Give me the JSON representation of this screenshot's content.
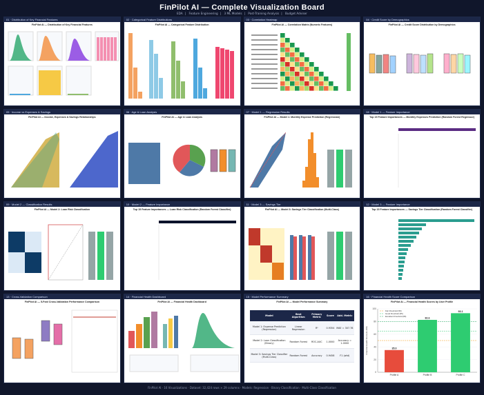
{
  "app": {
    "title": "FinPilot AI  —  Complete Visualization Board",
    "nav": [
      "EDA",
      "Feature Engineering",
      "3 ML Models",
      "Post-Training Analysis",
      "Budget Adviser"
    ],
    "footer": "FinPilot AI · 16 Visualizations · Dataset: 32,424 rows × 29 columns · Models: Regression · Binary Classification · Multi-Class Classification"
  },
  "panels": [
    {
      "id": "01",
      "title": "01 · Distribution of Key Financial Features"
    },
    {
      "id": "02",
      "title": "02 · Categorical Feature Distributions"
    },
    {
      "id": "03",
      "title": "03 · Correlation Heatmap"
    },
    {
      "id": "04",
      "title": "04 · Credit Score by Demographics"
    },
    {
      "id": "05",
      "title": "05 · Income vs Expenses & Savings"
    },
    {
      "id": "06",
      "title": "06 · Age & Loan Analysis"
    },
    {
      "id": "07",
      "title": "07 · Model 1 — Regression Results"
    },
    {
      "id": "08",
      "title": "08 · Model 1 — Feature Importance"
    },
    {
      "id": "09",
      "title": "09 · Model 2 — Classification Results"
    },
    {
      "id": "10",
      "title": "10 · Model 2 — Feature Importance"
    },
    {
      "id": "11",
      "title": "11 · Model 3 — Savings Tier"
    },
    {
      "id": "12",
      "title": "12 · Model 3 — Feature Importance"
    },
    {
      "id": "13",
      "title": "13 · Cross-Validation Comparison"
    },
    {
      "id": "14",
      "title": "14 · Financial Health Dashboard"
    },
    {
      "id": "15",
      "title": "15 · Model Performance Summary"
    },
    {
      "id": "16",
      "title": "16 · Financial Health Score Comparison"
    }
  ],
  "charts": {
    "p01": "FinPilot AI — Distribution of Key Financial Features",
    "p02": "FinPilot AI — Categorical Feature Distribution",
    "p03": "FinPilot AI — Correlation Matrix (Numeric Features)",
    "p04": "FinPilot AI — Credit Score Distribution by Demographics",
    "p05": "FinPilot AI — Income, Expenses & Savings Relationships",
    "p06": "FinPilot AI — Age & Loan Analysis",
    "p07": "FinPilot AI — Model 1: Monthly Expense Prediction (Regression)",
    "p08": "Top 15 Feature Importances — Monthly Expenses Prediction (Random Forest Regressor)",
    "p09": "FinPilot AI — Model 2: Loan Risk Classification",
    "p10": "Top 15 Feature Importances — Loan Risk Classification (Random Forest Classifier)",
    "p11": "FinPilot AI — Model 3: Savings Tier Classification (Multi-Class)",
    "p12": "Top 15 Feature Importances — Savings Tier Classification (Random Forest Classifier)",
    "p13": "FinPilot AI — 5-Fold Cross-Validation Performance Comparison",
    "p14": "FinPilot AI — Financial Health Dashboard",
    "p15": "FinPilot AI — Model Performance Summary",
    "p16": "FinPilot AI — Financial Health Scores by User Profile"
  },
  "table": {
    "headers": [
      "Model",
      "Best Algorithm",
      "Primary Metric",
      "Score",
      "Add. Metric"
    ],
    "rows": [
      [
        "Model 1: Expense Prediction (Regression)",
        "Linear Regression",
        "R²",
        "0.9354",
        "MAE = 307.78"
      ],
      [
        "Model 2: Loan Classification (Binary)",
        "Random Forest",
        "ROC-AUC",
        "1.0000",
        "Accuracy = 1.0000"
      ],
      [
        "Model 3: Savings Tier Classifier (Multi-Class)",
        "Random Forest",
        "Accuracy",
        "0.9458",
        "F1 (wtd)"
      ]
    ]
  },
  "chart_data": {
    "type": "bar",
    "title": "FinPilot AI — Financial Health Scores by User Profile",
    "categories": [
      "Profile A",
      "Profile B",
      "Profile C"
    ],
    "values": [
      35.0,
      82.6,
      93.1
    ],
    "value_labels": [
      "35.0",
      "82.6",
      "93.1"
    ],
    "ylabel": "Financial Health Score (0–100)",
    "ylim": [
      0,
      100
    ],
    "thresholds": [
      {
        "name": "Fair threshold (50)",
        "value": 50,
        "color": "#f39c12"
      },
      {
        "name": "Good threshold (65)",
        "value": 65,
        "color": "#2ecc71"
      },
      {
        "name": "Excellent threshold (80)",
        "value": 80,
        "color": "#27ae60"
      }
    ],
    "colors": [
      "#e74c3c",
      "#2ecc71",
      "#2ecc71"
    ]
  }
}
